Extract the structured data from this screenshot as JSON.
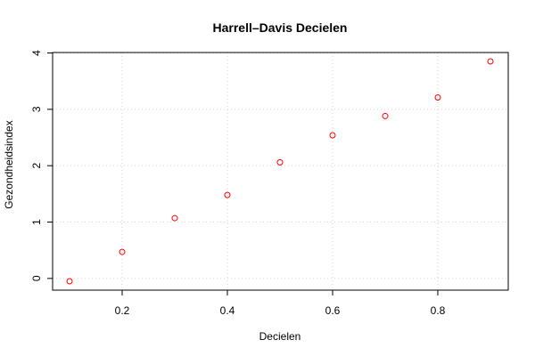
{
  "chart_data": {
    "type": "scatter",
    "title": "Harrell–Davis Decielen",
    "xlabel": "Decielen",
    "ylabel": "Gezondheidsindex",
    "xlim": [
      0.1,
      0.9
    ],
    "ylim": [
      -0.05,
      3.85
    ],
    "xticks": [
      0.2,
      0.4,
      0.6,
      0.8
    ],
    "yticks": [
      0,
      1,
      2,
      3,
      4
    ],
    "x_tick_labels": [
      "0.2",
      "0.4",
      "0.6",
      "0.8"
    ],
    "y_tick_labels": [
      "0",
      "1",
      "2",
      "3",
      "4"
    ],
    "grid": true,
    "marker_color": "#ff0000",
    "series": [
      {
        "x": [
          0.1,
          0.2,
          0.3,
          0.4,
          0.5,
          0.6,
          0.7,
          0.8,
          0.9
        ],
        "y": [
          -0.05,
          0.47,
          1.07,
          1.48,
          2.06,
          2.54,
          2.88,
          3.21,
          3.85
        ]
      }
    ]
  }
}
